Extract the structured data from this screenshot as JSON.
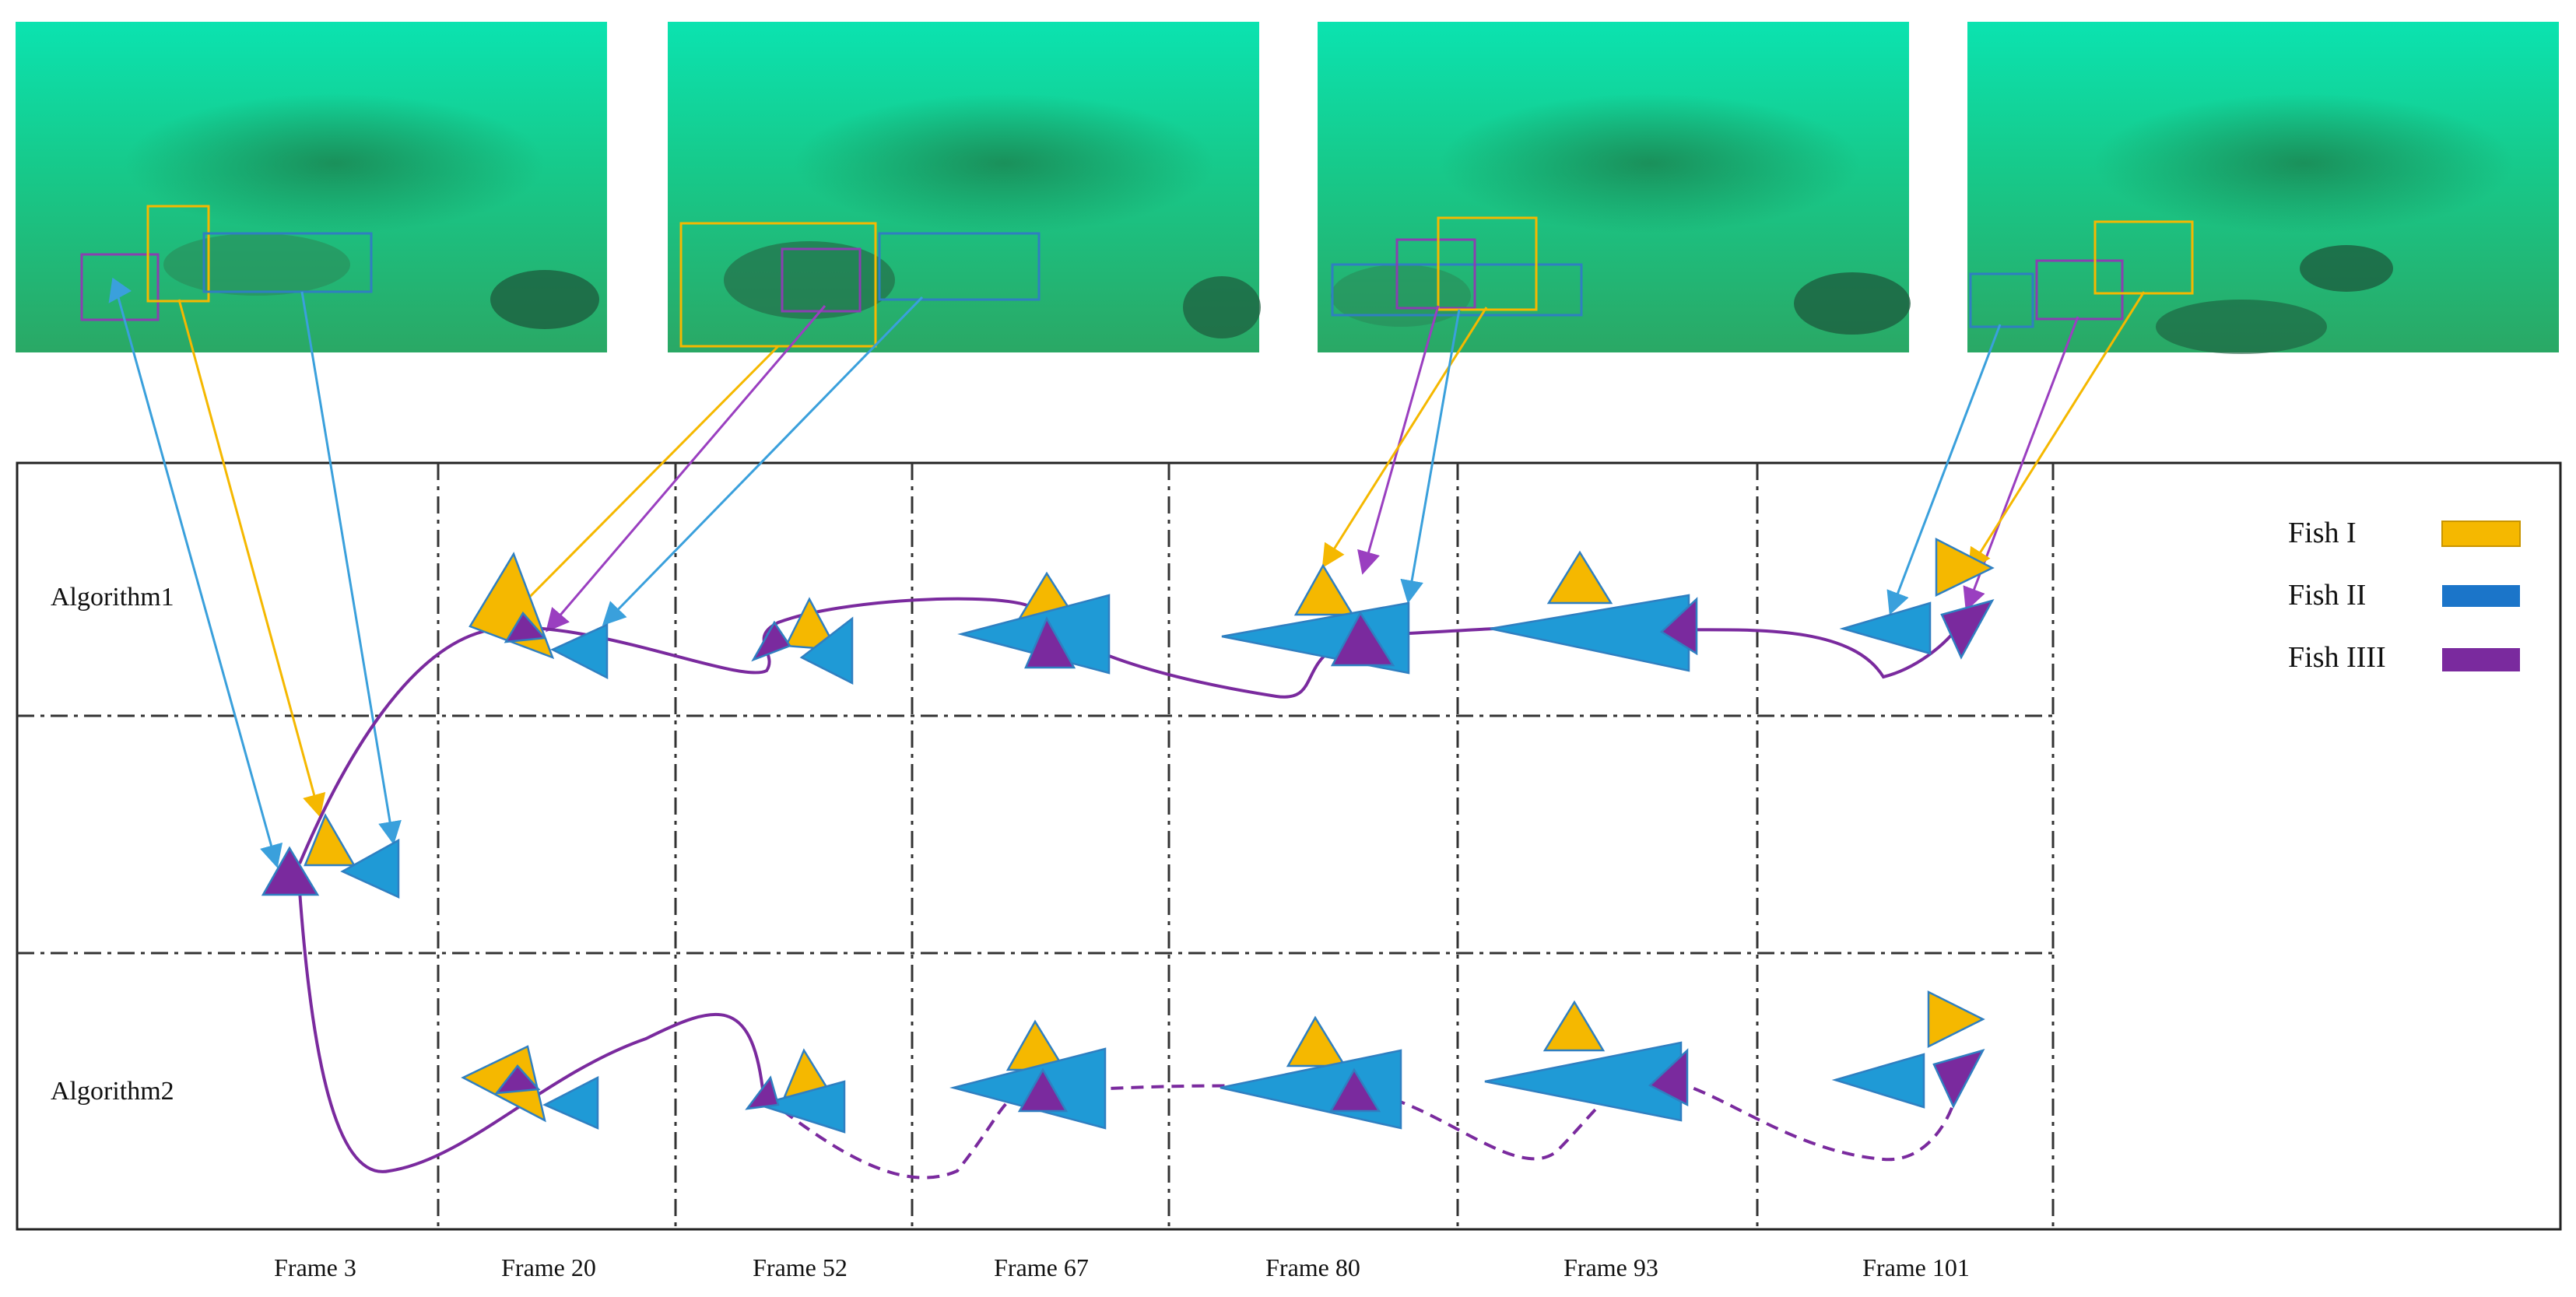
{
  "diagram": {
    "row_labels": [
      "Algorithm1",
      "Algorithm2"
    ],
    "frame_labels": [
      "Frame  3",
      "Frame  20",
      "Frame  52",
      "Frame  67",
      "Frame  80",
      "Frame  93",
      "Frame  101"
    ],
    "legend": [
      {
        "label": "Fish I",
        "color": "#f5b800"
      },
      {
        "label": "Fish II",
        "color": "#1b75c9"
      },
      {
        "label": "Fish IIII",
        "color": "#7a2a9e"
      }
    ],
    "colors": {
      "fish_i": "#f5b800",
      "fish_ii": "#1f9ad6",
      "fish_iiii": "#7a2a9e",
      "water_top": "#14e0a8",
      "water_mid": "#1fbf77",
      "water_bottom": "#2ea86a"
    },
    "snapshots": [
      "underwater-frame-1",
      "underwater-frame-2",
      "underwater-frame-3",
      "underwater-frame-4"
    ]
  }
}
